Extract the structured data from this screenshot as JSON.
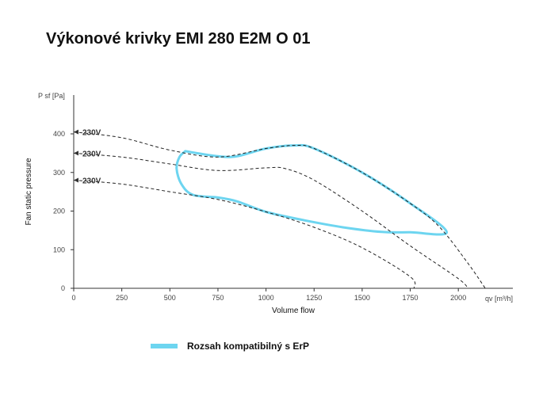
{
  "page": {
    "title": "Výkonové krivky EMI 280 E2M O 01"
  },
  "chart_data": {
    "type": "line",
    "title": "Výkonové krivky EMI 280 E2M O 01",
    "xlabel": "Volume flow",
    "ylabel": "Fan static pressure",
    "x_axis_unit_label": "qv [m³/h]",
    "y_axis_unit_label": "P sf [Pa]",
    "xlim": [
      0,
      2300
    ],
    "ylim": [
      0,
      500
    ],
    "x_ticks": [
      0,
      250,
      500,
      750,
      1000,
      1250,
      1500,
      1750,
      2000
    ],
    "y_ticks": [
      0,
      100,
      200,
      300,
      400
    ],
    "grid": false,
    "series": [
      {
        "name": "230V",
        "style": "dashed",
        "color": "#222222",
        "points": [
          [
            0,
            405
          ],
          [
            250,
            390
          ],
          [
            500,
            358
          ],
          [
            750,
            340
          ],
          [
            1000,
            362
          ],
          [
            1150,
            370
          ],
          [
            1250,
            362
          ],
          [
            1500,
            300
          ],
          [
            1750,
            220
          ],
          [
            1900,
            160
          ],
          [
            2050,
            65
          ],
          [
            2140,
            0
          ]
        ]
      },
      {
        "name": "230V",
        "style": "dashed",
        "color": "#222222",
        "points": [
          [
            0,
            350
          ],
          [
            250,
            340
          ],
          [
            500,
            322
          ],
          [
            750,
            305
          ],
          [
            1000,
            312
          ],
          [
            1100,
            310
          ],
          [
            1250,
            280
          ],
          [
            1500,
            200
          ],
          [
            1750,
            110
          ],
          [
            2000,
            25
          ],
          [
            2050,
            0
          ]
        ]
      },
      {
        "name": "230V",
        "style": "dashed",
        "color": "#222222",
        "points": [
          [
            0,
            280
          ],
          [
            250,
            270
          ],
          [
            500,
            250
          ],
          [
            750,
            230
          ],
          [
            1000,
            198
          ],
          [
            1250,
            158
          ],
          [
            1500,
            105
          ],
          [
            1750,
            30
          ],
          [
            1770,
            0
          ]
        ]
      }
    ],
    "erp_region": {
      "name": "Rozsah kompatibilný s ErP",
      "color": "#6dd5f0",
      "outline": [
        [
          580,
          355
        ],
        [
          750,
          342
        ],
        [
          850,
          342
        ],
        [
          1000,
          362
        ],
        [
          1150,
          370
        ],
        [
          1250,
          362
        ],
        [
          1500,
          300
        ],
        [
          1750,
          220
        ],
        [
          1940,
          145
        ],
        [
          1750,
          145
        ],
        [
          1600,
          146
        ],
        [
          1400,
          158
        ],
        [
          1200,
          176
        ],
        [
          1000,
          198
        ],
        [
          850,
          225
        ],
        [
          750,
          235
        ],
        [
          620,
          242
        ],
        [
          560,
          270
        ],
        [
          535,
          310
        ],
        [
          550,
          340
        ],
        [
          580,
          355
        ]
      ]
    },
    "legend": {
      "position": "bottom",
      "entries": [
        "Rozsah kompatibilný s ErP"
      ]
    }
  }
}
